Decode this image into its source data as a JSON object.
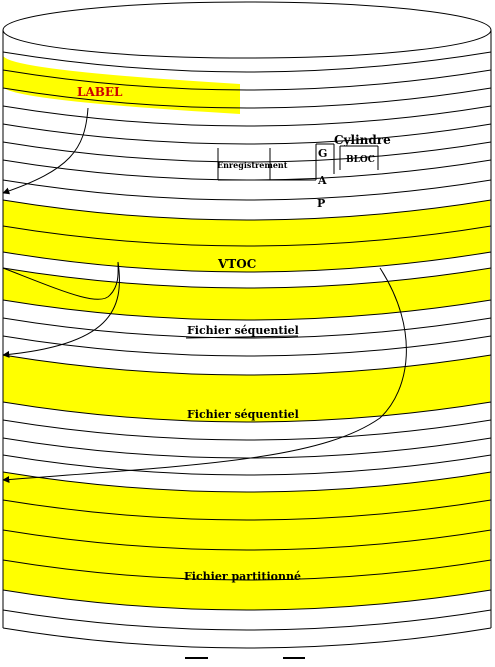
{
  "colors": {
    "band_fill": "#ffff00",
    "stroke": "#000000",
    "label_text": "#cc0000",
    "text": "#000000",
    "background": "#ffffff"
  },
  "labels": {
    "label": "LABEL",
    "cylindre": "Cylindre",
    "bloc": "BLOC",
    "enregistrement": "Enregistrement",
    "g": "G",
    "a": "A",
    "p": "P",
    "vtoc": "VTOC",
    "fichier_seq_1": "Fichier séquentiel",
    "fichier_seq_2": "Fichier séquentiel",
    "fichier_part": "Fichier partitionné"
  }
}
